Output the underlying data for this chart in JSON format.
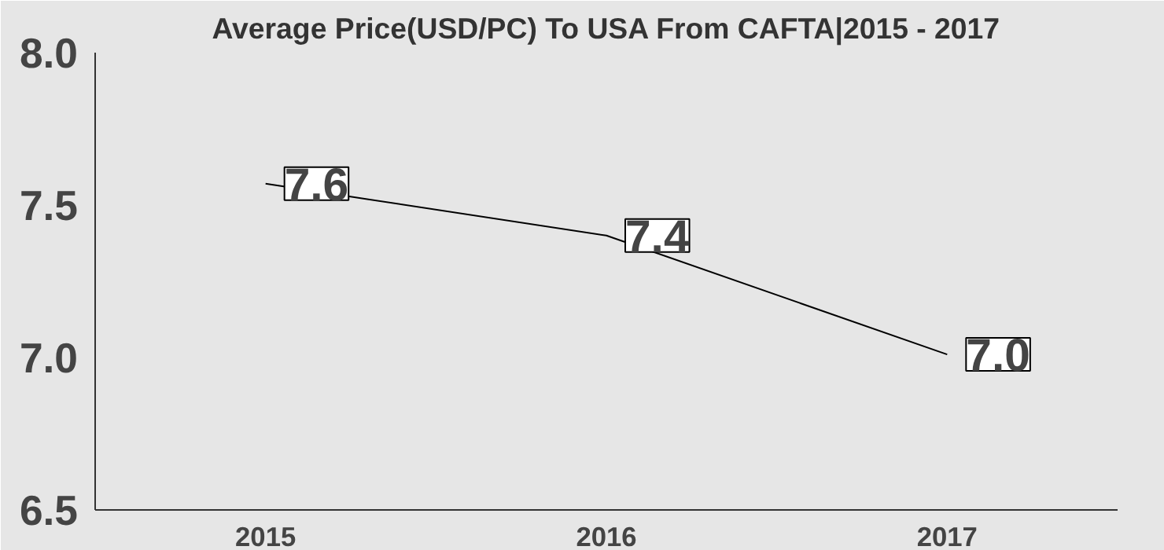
{
  "chart_data": {
    "type": "line",
    "title": "Average Price(USD/PC) To USA From CAFTA|2015 - 2017",
    "categories": [
      "2015",
      "2016",
      "2017"
    ],
    "series": [
      {
        "color": "#000000",
        "values": [
          7.57,
          7.4,
          7.01
        ],
        "value_labels": [
          "7.6",
          "7.4",
          "7.0"
        ]
      }
    ],
    "ylim": [
      6.5,
      8.0
    ],
    "yticks": [
      {
        "value": 6.5,
        "label": "6.5"
      },
      {
        "value": 7.0,
        "label": "7.0"
      },
      {
        "value": 7.5,
        "label": "7.5"
      },
      {
        "value": 8.0,
        "label": "8.0"
      }
    ]
  }
}
